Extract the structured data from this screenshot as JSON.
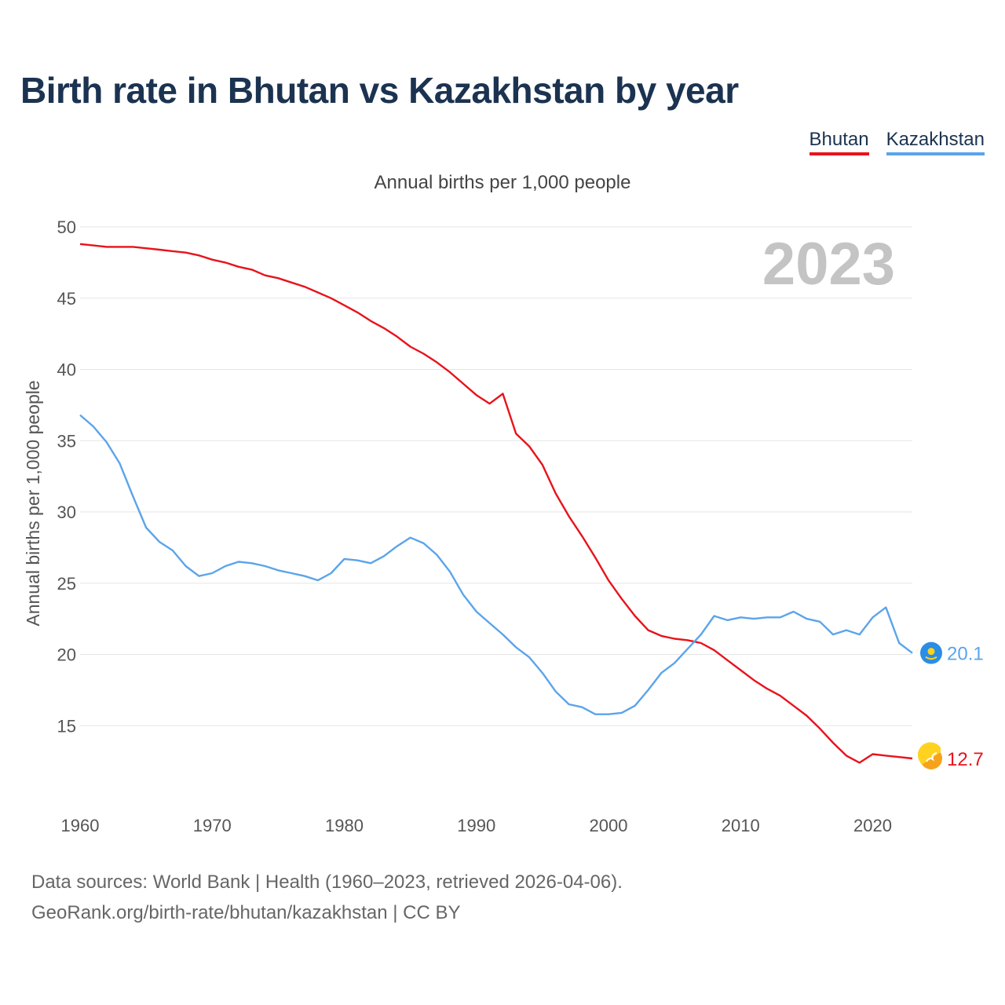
{
  "title": "Birth rate in Bhutan vs Kazakhstan by year",
  "footer": {
    "line1": "Data sources: World Bank | Health (1960–2023, retrieved 2026-04-06).",
    "line2": "GeoRank.org/birth-rate/bhutan/kazakhstan | CC BY"
  },
  "chart_data": {
    "type": "line",
    "title": "Birth rate in Bhutan vs Kazakhstan by year",
    "subtitle": "Annual births per 1,000 people",
    "ylabel": "Annual births per 1,000 people",
    "xlabel": "",
    "year_label": "2023",
    "xlim": [
      1960,
      2023
    ],
    "ylim": [
      10,
      50
    ],
    "x_ticks": [
      1960,
      1970,
      1980,
      1990,
      2000,
      2010,
      2020
    ],
    "y_ticks": [
      15,
      20,
      25,
      30,
      35,
      40,
      45,
      50
    ],
    "grid": true,
    "legend_position": "top-right",
    "series": [
      {
        "name": "Bhutan",
        "color": "#e8131b",
        "end_label": "12.7",
        "icon": "bhutan-flag-icon",
        "x": [
          1960,
          1961,
          1962,
          1963,
          1964,
          1965,
          1966,
          1967,
          1968,
          1969,
          1970,
          1971,
          1972,
          1973,
          1974,
          1975,
          1976,
          1977,
          1978,
          1979,
          1980,
          1981,
          1982,
          1983,
          1984,
          1985,
          1986,
          1987,
          1988,
          1989,
          1990,
          1991,
          1992,
          1993,
          1994,
          1995,
          1996,
          1997,
          1998,
          1999,
          2000,
          2001,
          2002,
          2003,
          2004,
          2005,
          2006,
          2007,
          2008,
          2009,
          2010,
          2011,
          2012,
          2013,
          2014,
          2015,
          2016,
          2017,
          2018,
          2019,
          2020,
          2021,
          2022,
          2023
        ],
        "values": [
          48.8,
          48.7,
          48.6,
          48.6,
          48.6,
          48.5,
          48.4,
          48.3,
          48.2,
          48.0,
          47.7,
          47.5,
          47.2,
          47.0,
          46.6,
          46.4,
          46.1,
          45.8,
          45.4,
          45.0,
          44.5,
          44.0,
          43.4,
          42.9,
          42.3,
          41.6,
          41.1,
          40.5,
          39.8,
          39.0,
          38.2,
          37.6,
          38.3,
          35.5,
          34.6,
          33.3,
          31.3,
          29.7,
          28.3,
          26.8,
          25.2,
          23.9,
          22.7,
          21.7,
          21.3,
          21.1,
          21.0,
          20.8,
          20.3,
          19.6,
          18.9,
          18.2,
          17.6,
          17.1,
          16.4,
          15.7,
          14.8,
          13.8,
          12.9,
          12.4,
          13.0,
          12.9,
          12.8,
          12.7
        ]
      },
      {
        "name": "Kazakhstan",
        "color": "#5ba4ea",
        "end_label": "20.1",
        "icon": "kazakhstan-flag-icon",
        "x": [
          1960,
          1961,
          1962,
          1963,
          1964,
          1965,
          1966,
          1967,
          1968,
          1969,
          1970,
          1971,
          1972,
          1973,
          1974,
          1975,
          1976,
          1977,
          1978,
          1979,
          1980,
          1981,
          1982,
          1983,
          1984,
          1985,
          1986,
          1987,
          1988,
          1989,
          1990,
          1991,
          1992,
          1993,
          1994,
          1995,
          1996,
          1997,
          1998,
          1999,
          2000,
          2001,
          2002,
          2003,
          2004,
          2005,
          2006,
          2007,
          2008,
          2009,
          2010,
          2011,
          2012,
          2013,
          2014,
          2015,
          2016,
          2017,
          2018,
          2019,
          2020,
          2021,
          2022,
          2023
        ],
        "values": [
          36.8,
          36.0,
          34.9,
          33.4,
          31.1,
          28.9,
          27.9,
          27.3,
          26.2,
          25.5,
          25.7,
          26.2,
          26.5,
          26.4,
          26.2,
          25.9,
          25.7,
          25.5,
          25.2,
          25.7,
          26.7,
          26.6,
          26.4,
          26.9,
          27.6,
          28.2,
          27.8,
          27.0,
          25.8,
          24.2,
          23.0,
          22.2,
          21.4,
          20.5,
          19.8,
          18.7,
          17.4,
          16.5,
          16.3,
          15.8,
          15.8,
          15.9,
          16.4,
          17.5,
          18.7,
          19.4,
          20.4,
          21.4,
          22.7,
          22.4,
          22.6,
          22.5,
          22.6,
          22.6,
          23.0,
          22.5,
          22.3,
          21.4,
          21.7,
          21.4,
          22.6,
          23.3,
          20.8,
          20.1
        ]
      }
    ]
  }
}
